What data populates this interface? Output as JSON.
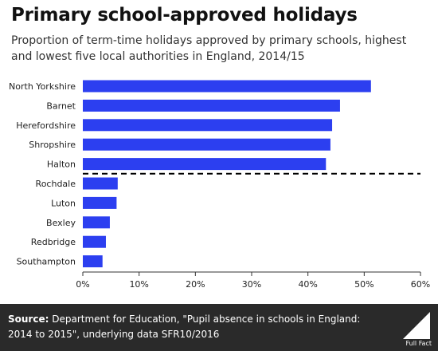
{
  "header": {
    "title": "Primary school-approved holidays",
    "subtitle": "Proportion of term-time holidays approved by primary schools, highest and lowest five local authorities in England, 2014/15"
  },
  "footer": {
    "source_label": "Source:",
    "source_text": "Department for Education, \"Pupil absence in schools in England: 2014 to 2015\", underlying data SFR10/2016",
    "logo_text": "Full Fact"
  },
  "colors": {
    "bar": "#2c3ff0",
    "divider": "#000000",
    "axis": "#333333",
    "footer_bg": "#2a2a2a"
  },
  "chart_data": {
    "type": "bar",
    "orientation": "horizontal",
    "categories": [
      "North Yorkshire",
      "Barnet",
      "Herefordshire",
      "Shropshire",
      "Halton",
      "Rochdale",
      "Luton",
      "Bexley",
      "Redbridge",
      "Southampton"
    ],
    "values": [
      51.2,
      45.7,
      44.3,
      44.0,
      43.2,
      6.2,
      6.0,
      4.8,
      4.1,
      3.5
    ],
    "xlim": [
      0,
      60
    ],
    "xticks": [
      0,
      10,
      20,
      30,
      40,
      50,
      60
    ],
    "tick_suffix": "%",
    "divider_after_index": 4,
    "grid": false
  }
}
